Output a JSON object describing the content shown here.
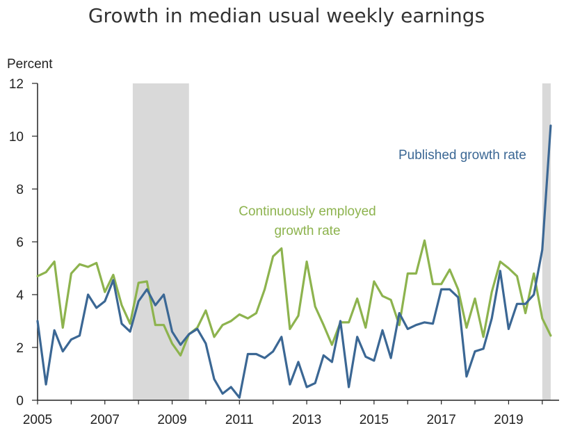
{
  "chart_data": {
    "type": "line",
    "title": "Growth in median usual weekly earnings",
    "ylabel": "Percent",
    "xlabel": "",
    "xlim": [
      2005,
      2020.5
    ],
    "ylim": [
      0,
      12
    ],
    "yticks": [
      0,
      2,
      4,
      6,
      8,
      10,
      12
    ],
    "xticks": [
      2005,
      2007,
      2009,
      2011,
      2013,
      2015,
      2017,
      2019
    ],
    "recessions": [
      [
        2007.83,
        2009.5
      ],
      [
        2020.0,
        2020.25
      ]
    ],
    "colors": {
      "published": "#3b6794",
      "continuous": "#8db34e",
      "recession": "#d9d9d9"
    },
    "annotations": {
      "published": "Published growth rate",
      "continuous_line1": "Continuously employed",
      "continuous_line2": "growth rate"
    },
    "series": [
      {
        "name": "Published growth rate",
        "x": [
          2005.0,
          2005.25,
          2005.5,
          2005.75,
          2006.0,
          2006.25,
          2006.5,
          2006.75,
          2007.0,
          2007.25,
          2007.5,
          2007.75,
          2008.0,
          2008.25,
          2008.5,
          2008.75,
          2009.0,
          2009.25,
          2009.5,
          2009.75,
          2010.0,
          2010.25,
          2010.5,
          2010.75,
          2011.0,
          2011.25,
          2011.5,
          2011.75,
          2012.0,
          2012.25,
          2012.5,
          2012.75,
          2013.0,
          2013.25,
          2013.5,
          2013.75,
          2014.0,
          2014.25,
          2014.5,
          2014.75,
          2015.0,
          2015.25,
          2015.5,
          2015.75,
          2016.0,
          2016.25,
          2016.5,
          2016.75,
          2017.0,
          2017.25,
          2017.5,
          2017.75,
          2018.0,
          2018.25,
          2018.5,
          2018.75,
          2019.0,
          2019.25,
          2019.5,
          2019.75,
          2020.0,
          2020.25
        ],
        "values": [
          3.0,
          0.6,
          2.65,
          1.85,
          2.3,
          2.45,
          4.0,
          3.5,
          3.75,
          4.55,
          2.9,
          2.6,
          3.75,
          4.2,
          3.6,
          4.0,
          2.6,
          2.1,
          2.5,
          2.7,
          2.15,
          0.8,
          0.25,
          0.5,
          0.1,
          1.75,
          1.75,
          1.6,
          1.85,
          2.4,
          0.6,
          1.45,
          0.5,
          0.65,
          1.7,
          1.45,
          3.0,
          0.5,
          2.4,
          1.65,
          1.5,
          2.65,
          1.6,
          3.3,
          2.7,
          2.85,
          2.95,
          2.9,
          4.2,
          4.2,
          3.9,
          0.9,
          1.85,
          1.95,
          3.1,
          4.9,
          2.7,
          3.65,
          3.65,
          4.0,
          5.7,
          10.4
        ]
      },
      {
        "name": "Continuously employed growth rate",
        "x": [
          2005.0,
          2005.25,
          2005.5,
          2005.75,
          2006.0,
          2006.25,
          2006.5,
          2006.75,
          2007.0,
          2007.25,
          2007.5,
          2007.75,
          2008.0,
          2008.25,
          2008.5,
          2008.75,
          2009.0,
          2009.25,
          2009.5,
          2009.75,
          2010.0,
          2010.25,
          2010.5,
          2010.75,
          2011.0,
          2011.25,
          2011.5,
          2011.75,
          2012.0,
          2012.25,
          2012.5,
          2012.75,
          2013.0,
          2013.25,
          2013.5,
          2013.75,
          2014.0,
          2014.25,
          2014.5,
          2014.75,
          2015.0,
          2015.25,
          2015.5,
          2015.75,
          2016.0,
          2016.25,
          2016.5,
          2016.75,
          2017.0,
          2017.25,
          2017.5,
          2017.75,
          2018.0,
          2018.25,
          2018.5,
          2018.75,
          2019.0,
          2019.25,
          2019.5,
          2019.75,
          2020.0,
          2020.25
        ],
        "values": [
          4.7,
          4.85,
          5.25,
          2.75,
          4.8,
          5.15,
          5.05,
          5.2,
          4.1,
          4.75,
          3.6,
          2.9,
          4.45,
          4.5,
          2.85,
          2.85,
          2.15,
          1.7,
          2.5,
          2.75,
          3.4,
          2.4,
          2.85,
          3.0,
          3.25,
          3.1,
          3.3,
          4.2,
          5.45,
          5.75,
          2.7,
          3.2,
          5.25,
          3.55,
          2.85,
          2.1,
          2.95,
          2.95,
          3.85,
          2.75,
          4.5,
          3.95,
          3.8,
          2.85,
          4.8,
          4.8,
          6.05,
          4.4,
          4.4,
          4.95,
          4.2,
          2.75,
          3.85,
          2.4,
          4.1,
          5.25,
          5.0,
          4.7,
          3.3,
          4.8,
          3.1,
          2.45
        ]
      }
    ]
  }
}
